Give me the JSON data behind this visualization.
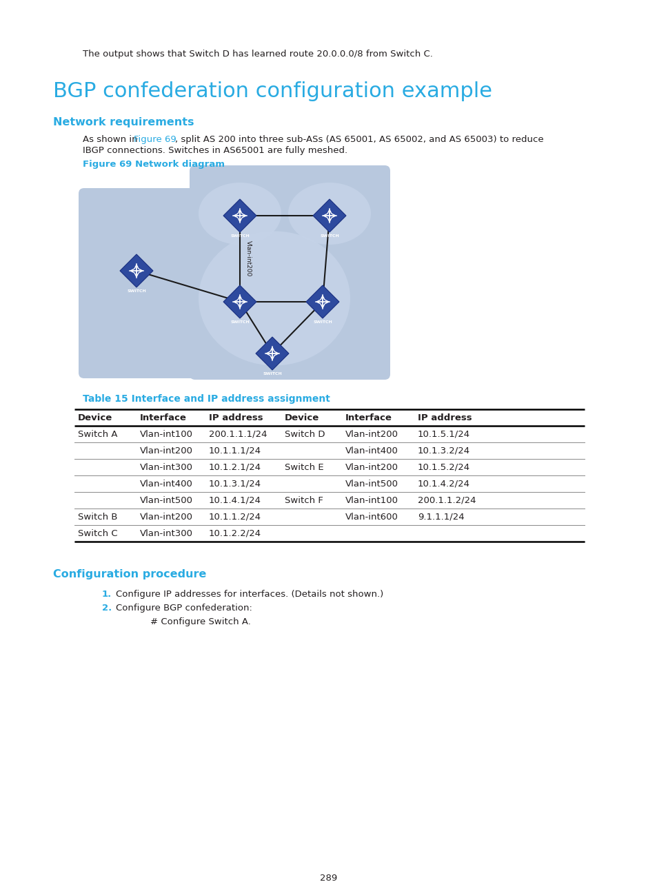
{
  "bg_color": "#ffffff",
  "intro_text": "The output shows that Switch D has learned route 20.0.0.0/8 from Switch C.",
  "main_title": "BGP confederation configuration example",
  "section1_title": "Network requirements",
  "fig_caption": "Figure 69 Network diagram",
  "table_title": "Table 15 Interface and IP address assignment",
  "table_headers": [
    "Device",
    "Interface",
    "IP address",
    "Device",
    "Interface",
    "IP address"
  ],
  "table_rows": [
    [
      "Switch A",
      "Vlan-int100",
      "200.1.1.1/24",
      "Switch D",
      "Vlan-int200",
      "10.1.5.1/24"
    ],
    [
      "",
      "Vlan-int200",
      "10.1.1.1/24",
      "",
      "Vlan-int400",
      "10.1.3.2/24"
    ],
    [
      "",
      "Vlan-int300",
      "10.1.2.1/24",
      "Switch E",
      "Vlan-int200",
      "10.1.5.2/24"
    ],
    [
      "",
      "Vlan-int400",
      "10.1.3.1/24",
      "",
      "Vlan-int500",
      "10.1.4.2/24"
    ],
    [
      "",
      "Vlan-int500",
      "10.1.4.1/24",
      "Switch F",
      "Vlan-int100",
      "200.1.1.2/24"
    ],
    [
      "Switch B",
      "Vlan-int200",
      "10.1.1.2/24",
      "",
      "Vlan-int600",
      "9.1.1.1/24"
    ],
    [
      "Switch C",
      "Vlan-int300",
      "10.1.2.2/24",
      "",
      "",
      ""
    ]
  ],
  "section2_title": "Configuration procedure",
  "config_steps": [
    "Configure IP addresses for interfaces. (Details not shown.)",
    "Configure BGP confederation:"
  ],
  "config_sub": "# Configure Switch A.",
  "page_number": "289",
  "text_color": "#231f20",
  "link_color": "#29abe2",
  "heading_color": "#29abe2",
  "box_bg_light": "#b8c8de",
  "ellipse_color": "#c5d3e8",
  "switch_fill": "#2e4a9e",
  "switch_border": "#1a3080",
  "line_color": "#1a1a1a"
}
